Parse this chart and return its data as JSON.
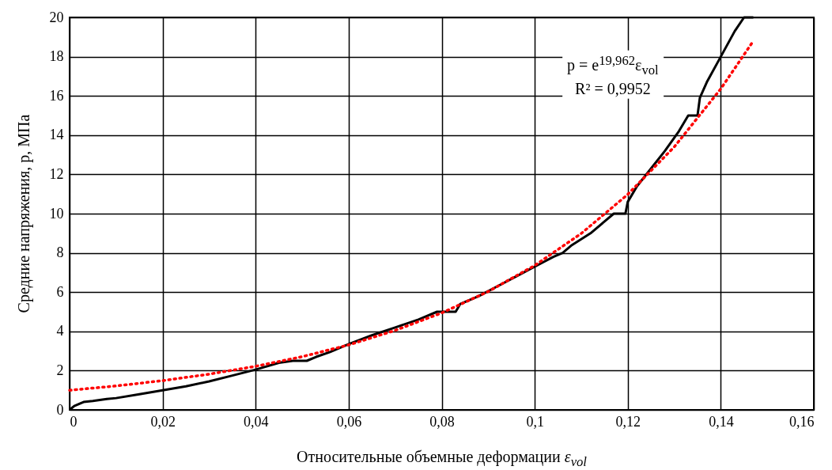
{
  "chart_data": {
    "type": "line",
    "xlabel": "Относительные объемные деформации ε$_{vol}$",
    "ylabel": "Средние напряжения, p, МПа",
    "annotations": [
      "p = e$^{19,962}$ε$_{vol}$",
      "R² = 0,9952"
    ],
    "xlim": [
      0,
      0.16
    ],
    "xticks": [
      0,
      {
        "value": 0.02,
        "label": "0,02"
      },
      {
        "value": 0.04,
        "label": "0,04"
      },
      {
        "value": 0.06,
        "label": "0,06"
      },
      {
        "value": 0.08,
        "label": "0,08"
      },
      {
        "value": 0.1,
        "label": "0,1"
      },
      {
        "value": 0.12,
        "label": "0,12"
      },
      {
        "value": 0.14,
        "label": "0,14"
      },
      {
        "value": 0.16,
        "label": "0,16"
      }
    ],
    "ylim": [
      0,
      20
    ],
    "yticks": [
      0,
      2,
      4,
      6,
      8,
      10,
      12,
      14,
      16,
      18,
      20
    ],
    "grid": true,
    "series": [
      {
        "color": "#000000",
        "line_style": "solid",
        "x": [
          0,
          0.001,
          0.003,
          0.005,
          0.008,
          0.01,
          0.015,
          0.02,
          0.025,
          0.03,
          0.035,
          0.04,
          0.045,
          0.048,
          0.051,
          0.053,
          0.056,
          0.06,
          0.065,
          0.07,
          0.075,
          0.079,
          0.083,
          0.084,
          0.088,
          0.092,
          0.096,
          0.1,
          0.104,
          0.106,
          0.108,
          0.112,
          0.115,
          0.117,
          0.1195,
          0.12,
          0.122,
          0.125,
          0.128,
          0.131,
          0.133,
          0.135,
          0.1355,
          0.137,
          0.14,
          0.143,
          0.145,
          0.147
        ],
        "values": [
          0,
          0.2,
          0.4,
          0.45,
          0.55,
          0.6,
          0.8,
          1.0,
          1.2,
          1.45,
          1.75,
          2.05,
          2.4,
          2.5,
          2.5,
          2.7,
          2.95,
          3.35,
          3.8,
          4.2,
          4.6,
          5.0,
          5.0,
          5.4,
          5.8,
          6.3,
          6.8,
          7.3,
          7.8,
          8.0,
          8.4,
          9.0,
          9.6,
          10.0,
          10.0,
          10.6,
          11.4,
          12.3,
          13.2,
          14.2,
          15.0,
          15.0,
          15.9,
          16.7,
          18.0,
          19.3,
          20,
          20
        ]
      },
      {
        "type": "line",
        "color": "#ff0000",
        "line_style": "dotted",
        "x": [
          0,
          0.01,
          0.02,
          0.03,
          0.04,
          0.05,
          0.06,
          0.07,
          0.08,
          0.09,
          0.1,
          0.11,
          0.12,
          0.13,
          0.14,
          0.147
        ],
        "values": [
          1,
          1.22,
          1.49,
          1.82,
          2.22,
          2.71,
          3.31,
          4.05,
          4.94,
          6.03,
          7.36,
          8.99,
          10.98,
          13.4,
          16.36,
          18.8
        ]
      }
    ]
  }
}
